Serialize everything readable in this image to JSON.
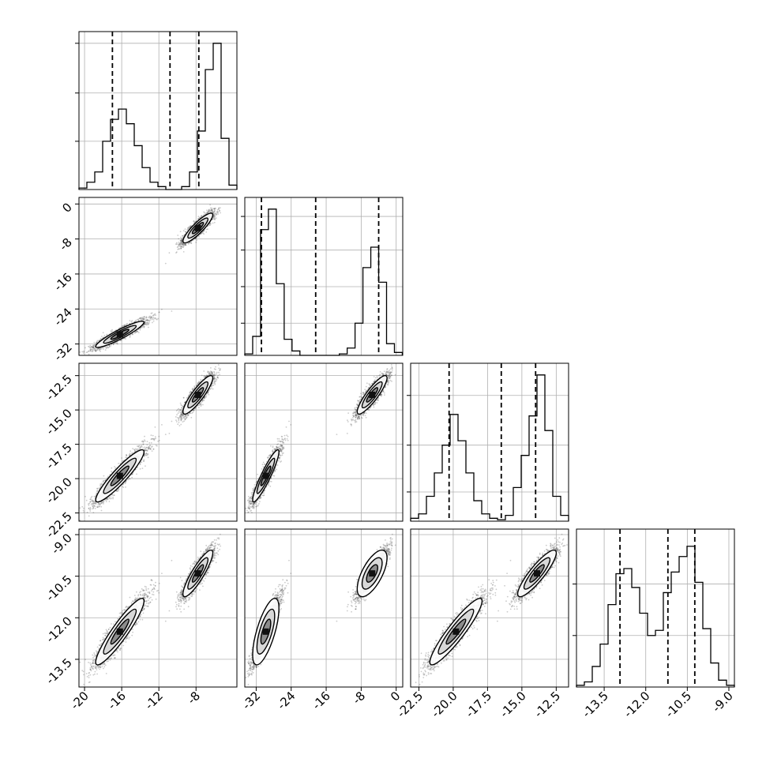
{
  "chart_data": {
    "type": "corner",
    "parameters": [
      {
        "ticks": [
          "-20",
          "-16",
          "-12",
          "-8"
        ],
        "tick_values": [
          -20,
          -16,
          -12,
          -8
        ],
        "range": [
          -20.6,
          -3.6
        ],
        "hist": {
          "edges_start": -20.6,
          "bin_width": 0.85,
          "heights": [
            0.01,
            0.05,
            0.12,
            0.33,
            0.48,
            0.55,
            0.45,
            0.3,
            0.15,
            0.05,
            0.02,
            0.0,
            0.0,
            0.02,
            0.12,
            0.4,
            0.82,
            1.0,
            0.35,
            0.03
          ]
        },
        "hist_ymax": 1.08,
        "quantiles": [
          -17.0,
          -10.8,
          -7.7
        ],
        "hist_yticks": [
          0.33,
          0.66,
          1.0
        ]
      },
      {
        "ticks": [
          "-32",
          "-24",
          "-16",
          "-8",
          "0"
        ],
        "tick_values": [
          -32,
          -24,
          -16,
          -8,
          0
        ],
        "range": [
          -34.6,
          1.5
        ],
        "hist": {
          "edges_start": -34.6,
          "bin_width": 1.8,
          "heights": [
            0.01,
            0.13,
            0.86,
            1.0,
            0.49,
            0.11,
            0.03,
            0.0,
            0.0,
            0.0,
            0.0,
            0.0,
            0.01,
            0.05,
            0.22,
            0.6,
            0.74,
            0.5,
            0.08,
            0.02
          ]
        },
        "hist_ymax": 1.08,
        "quantiles": [
          -30.8,
          -18.4,
          -4.0
        ],
        "hist_yticks": [
          0.22,
          0.47,
          0.72,
          0.95
        ]
      },
      {
        "ticks": [
          "-22.5",
          "-20.0",
          "-17.5",
          "-15.0",
          "-12.5"
        ],
        "tick_values": [
          -22.5,
          -20.0,
          -17.5,
          -15.0,
          -12.5
        ],
        "range": [
          -23.1,
          -11.6
        ],
        "hist": {
          "edges_start": -23.1,
          "bin_width": 0.575,
          "heights": [
            0.02,
            0.05,
            0.17,
            0.33,
            0.52,
            0.73,
            0.55,
            0.33,
            0.14,
            0.05,
            0.02,
            0.01,
            0.04,
            0.23,
            0.45,
            0.72,
            1.0,
            0.62,
            0.17,
            0.04
          ]
        },
        "hist_ymax": 1.08,
        "quantiles": [
          -20.3,
          -16.5,
          -14.0
        ],
        "hist_yticks": [
          0.2,
          0.52,
          0.86
        ]
      },
      {
        "ticks": [
          "-13.5",
          "-12.0",
          "-10.5",
          "-9.0"
        ],
        "tick_values": [
          -13.5,
          -12.0,
          -10.5,
          -9.0
        ],
        "range": [
          -14.5,
          -8.8
        ],
        "hist": {
          "edges_start": -14.5,
          "bin_width": 0.285,
          "heights": [
            0.01,
            0.03,
            0.12,
            0.25,
            0.48,
            0.66,
            0.69,
            0.58,
            0.43,
            0.3,
            0.33,
            0.55,
            0.67,
            0.76,
            0.82,
            0.61,
            0.34,
            0.14,
            0.04,
            0.01
          ]
        },
        "hist_ymax": 0.92,
        "quantiles": [
          -12.93,
          -11.2,
          -10.23
        ],
        "hist_yticks": [
          0.3,
          0.6
        ]
      }
    ],
    "modes": [
      {
        "center": [
          -16.2,
          -29.8,
          -19.8,
          -12.5
        ],
        "sd": [
          1.3,
          1.5,
          0.95,
          0.6
        ],
        "corr": 0.92
      },
      {
        "center": [
          -7.8,
          -5.5,
          -13.9,
          -10.4
        ],
        "sd": [
          0.8,
          1.7,
          0.7,
          0.42
        ],
        "corr": 0.88
      }
    ],
    "contour_levels": 3,
    "quantile_line_style": "dashed",
    "grid": true
  }
}
